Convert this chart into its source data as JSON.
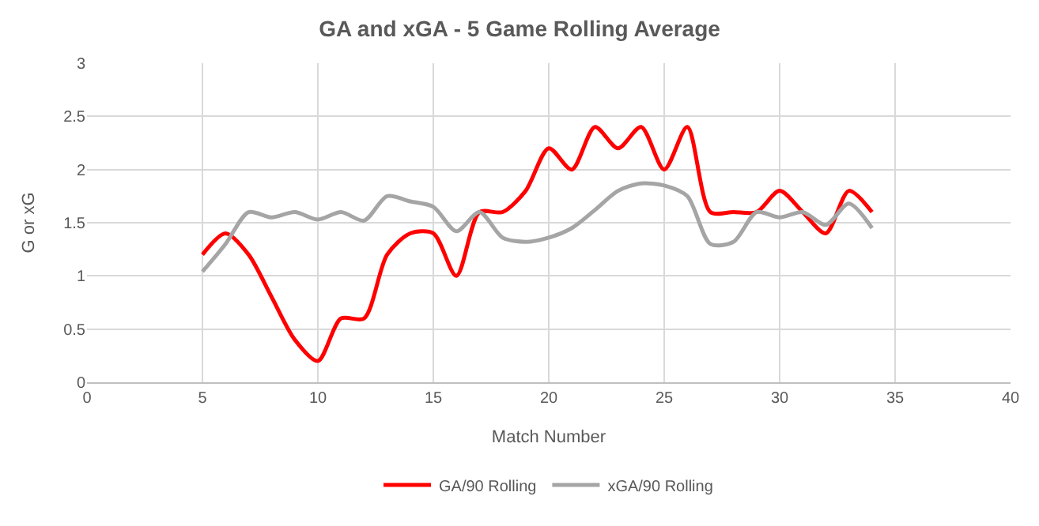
{
  "chart_data": {
    "type": "line",
    "title": "GA and xGA - 5 Game Rolling Average",
    "xlabel": "Match Number",
    "ylabel": "G or xG",
    "x": [
      5,
      6,
      7,
      8,
      9,
      10,
      11,
      12,
      13,
      14,
      15,
      16,
      17,
      18,
      19,
      20,
      21,
      22,
      23,
      24,
      25,
      26,
      27,
      28,
      29,
      30,
      31,
      32,
      33,
      34
    ],
    "series": [
      {
        "name": "GA/90 Rolling",
        "color": "#ff0000",
        "values": [
          1.2,
          1.4,
          1.2,
          0.8,
          0.4,
          0.2,
          0.6,
          0.6,
          1.2,
          1.4,
          1.4,
          1.0,
          1.6,
          1.6,
          1.8,
          2.2,
          2.0,
          2.4,
          2.2,
          2.4,
          2.0,
          2.4,
          1.6,
          1.6,
          1.6,
          1.8,
          1.6,
          1.4,
          1.8,
          1.6
        ]
      },
      {
        "name": "xGA/90 Rolling",
        "color": "#a5a5a5",
        "values": [
          1.04,
          1.3,
          1.6,
          1.55,
          1.6,
          1.53,
          1.6,
          1.52,
          1.75,
          1.7,
          1.65,
          1.42,
          1.6,
          1.36,
          1.32,
          1.36,
          1.45,
          1.62,
          1.8,
          1.87,
          1.85,
          1.75,
          1.3,
          1.32,
          1.6,
          1.55,
          1.6,
          1.48,
          1.68,
          1.45
        ]
      }
    ],
    "xlim": [
      0,
      40
    ],
    "xticks": [
      0,
      5,
      10,
      15,
      20,
      25,
      30,
      35,
      40
    ],
    "ylim": [
      0,
      3
    ],
    "yticks": [
      0,
      0.5,
      1,
      1.5,
      2,
      2.5,
      3
    ],
    "grid": true,
    "legend": "bottom",
    "marker": "none",
    "line_style": "solid"
  }
}
